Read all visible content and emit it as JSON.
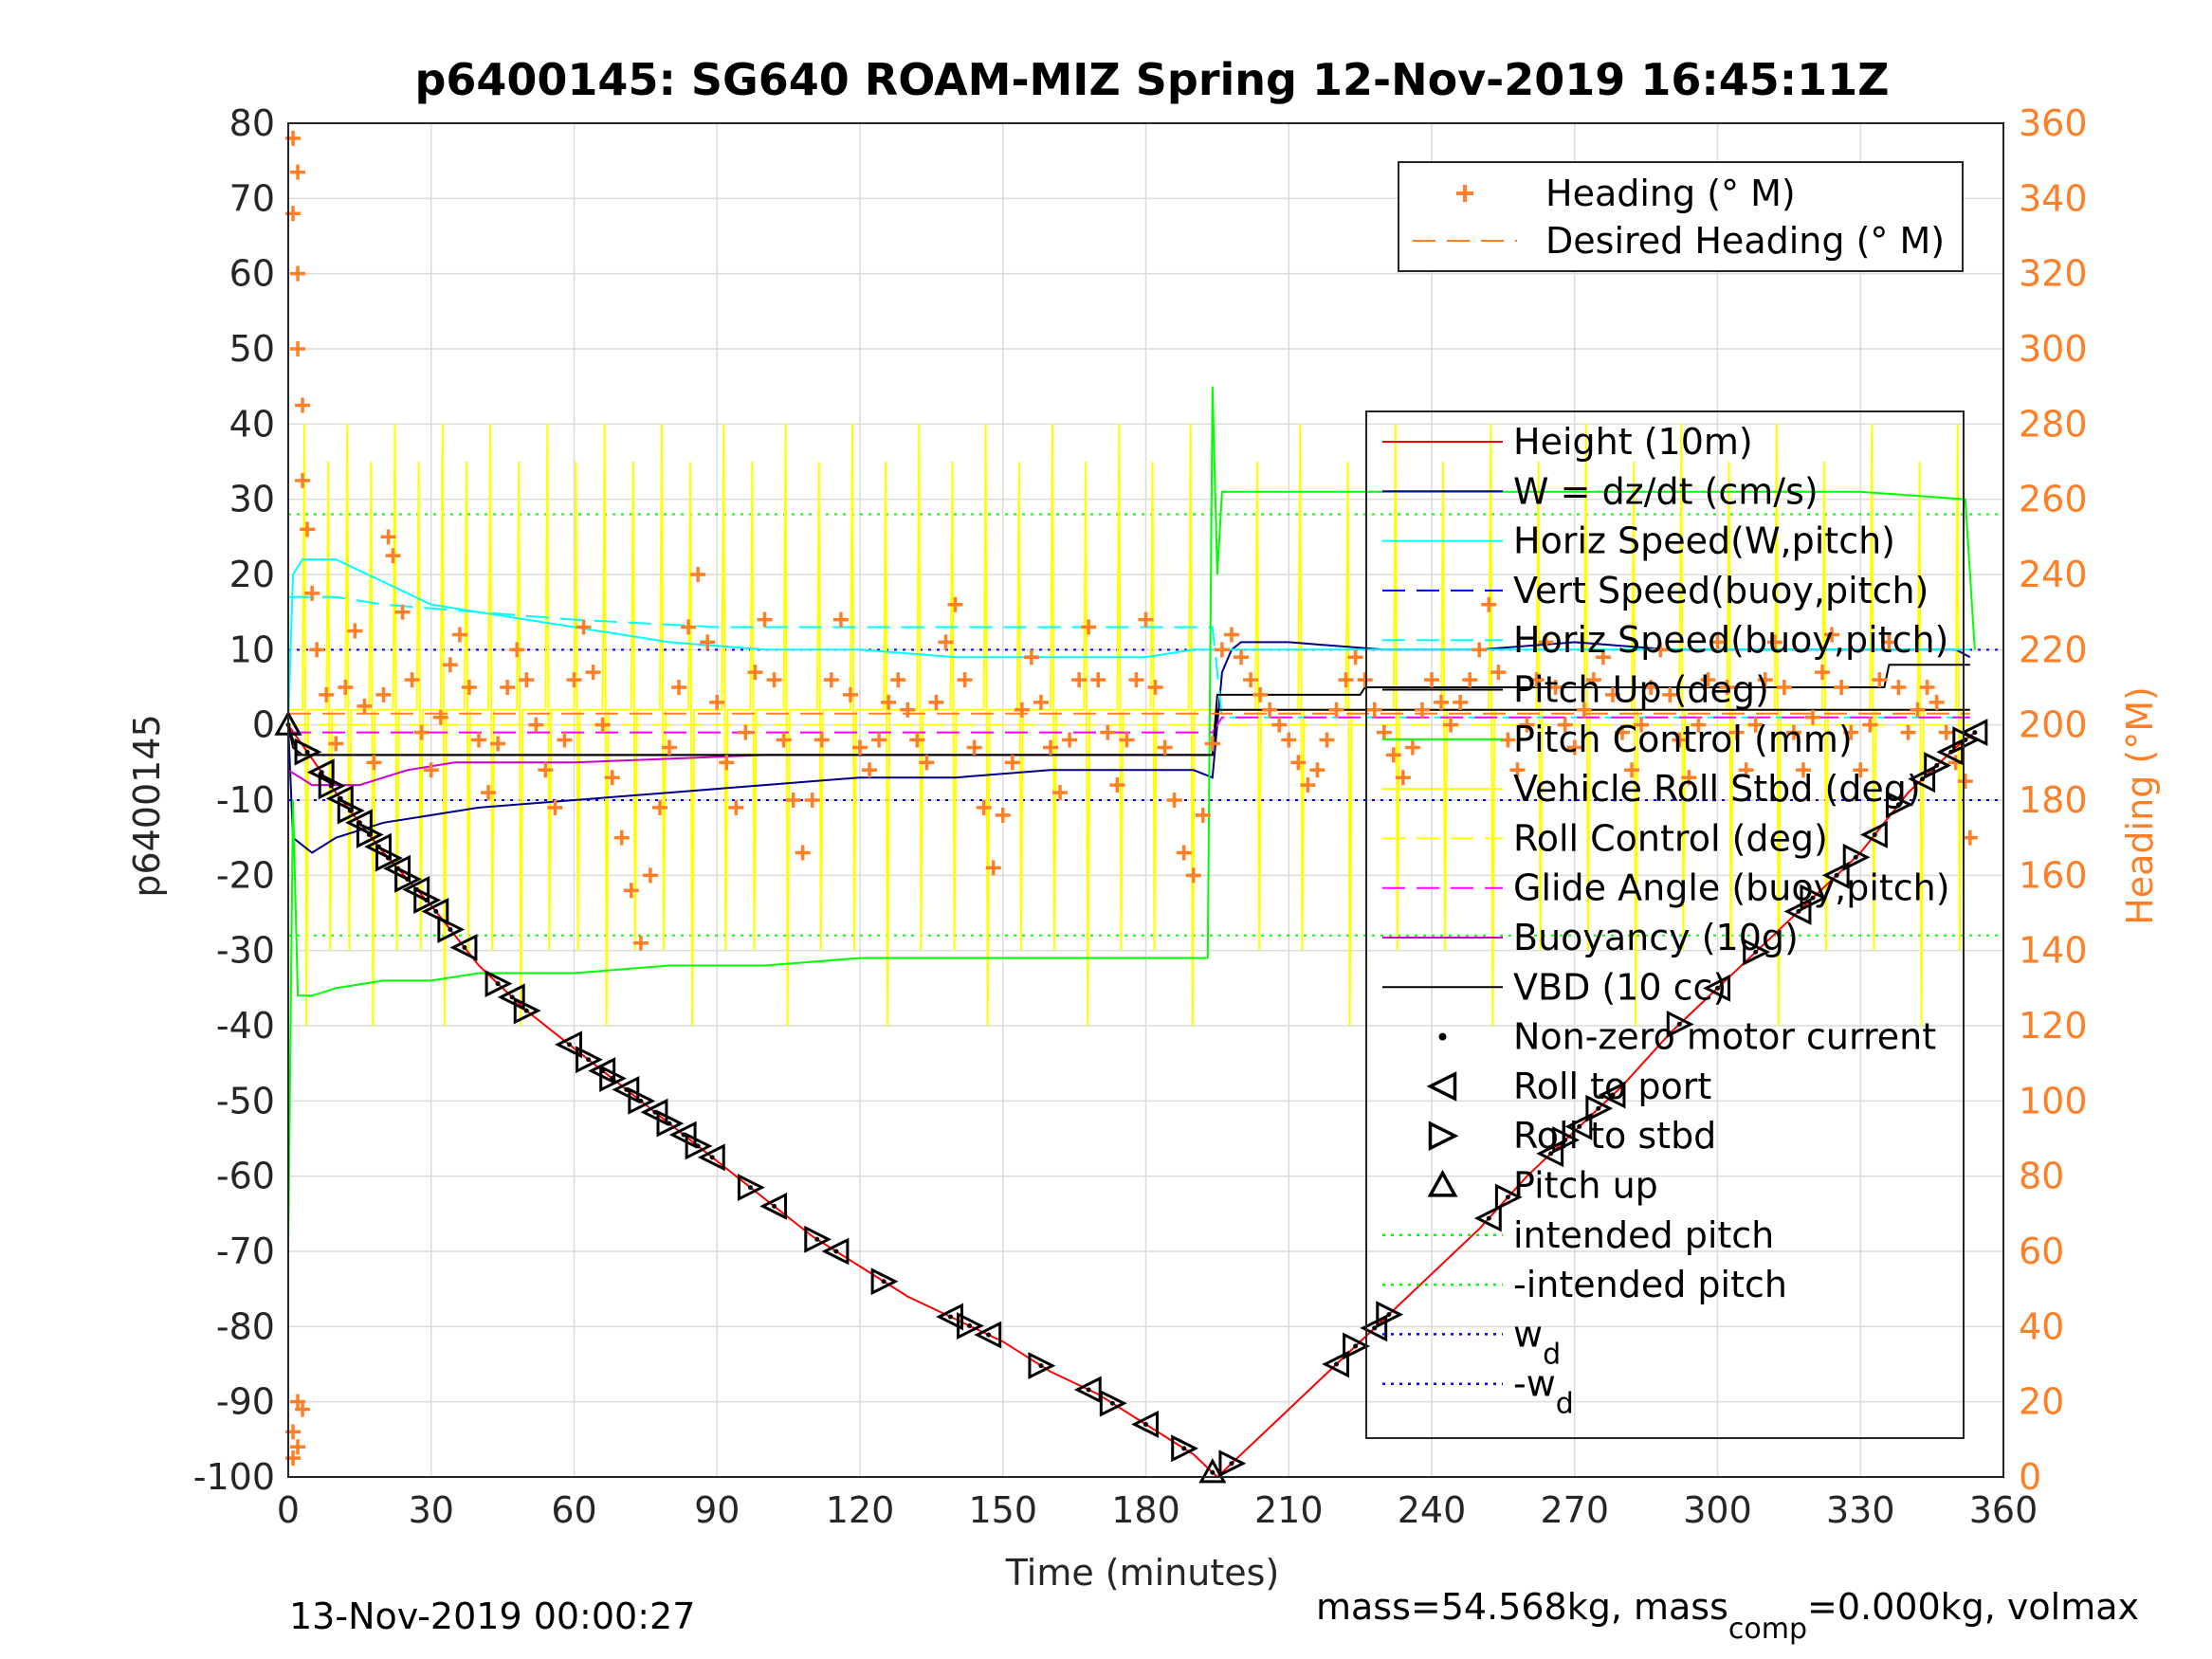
{
  "figure": {
    "footer_left": "13-Nov-2019 00:00:27",
    "footer_right": {
      "prefix": "mass=54.568kg, mass",
      "sub": "comp",
      "suffix": "=0.000kg, volmax"
    }
  },
  "chart_data": {
    "type": "line",
    "title": "p6400145: SG640 ROAM-MIZ Spring 12-Nov-2019 16:45:11Z",
    "xlabel": "Time (minutes)",
    "ylabel_left": "p6400145",
    "ylabel_right": "Heading (°M)",
    "xlim": [
      0,
      360
    ],
    "ylim_left": [
      -100,
      80
    ],
    "ylim_right": [
      0,
      360
    ],
    "x_ticks": [
      0,
      30,
      60,
      90,
      120,
      150,
      180,
      210,
      240,
      270,
      300,
      330,
      360
    ],
    "y_ticks_left": [
      80,
      70,
      60,
      50,
      40,
      30,
      20,
      10,
      0,
      -10,
      -20,
      -30,
      -40,
      -50,
      -60,
      -70,
      -80,
      -90,
      -100
    ],
    "y_ticks_right": [
      360,
      340,
      320,
      300,
      280,
      260,
      240,
      220,
      200,
      180,
      160,
      140,
      120,
      100,
      80,
      60,
      40,
      20,
      0
    ],
    "grid": true,
    "colors": {
      "heading": "#ff7f27",
      "height": "#ff0000",
      "w": "#00008b",
      "horiz_speed": "#00ffff",
      "vert_speed": "#0000ff",
      "pitch_up": "#000000",
      "pitch_control": "#00ff00",
      "roll": "#ffff00",
      "glide": "#ff00ff",
      "buoyancy": "#cc00cc",
      "vbd": "#000000",
      "guide_green": "#00ff00",
      "guide_blue": "#0000ff"
    },
    "legend_heading": [
      {
        "label": "Heading (° M)",
        "style": "plus",
        "color": "#ff7f27"
      },
      {
        "label": "Desired Heading (° M)",
        "style": "dash",
        "color": "#ff7f27"
      }
    ],
    "legend_main": [
      {
        "label": "Height (10m)",
        "style": "line",
        "color": "#ff0000"
      },
      {
        "label": "W = dz/dt (cm/s)",
        "style": "line",
        "color": "#00008b"
      },
      {
        "label": "Horiz Speed(W,pitch)",
        "style": "line",
        "color": "#00ffff"
      },
      {
        "label": "Vert Speed(buoy,pitch)",
        "style": "dash",
        "color": "#0000ff"
      },
      {
        "label": "Horiz Speed(buoy,pitch)",
        "style": "dash",
        "color": "#00ffff"
      },
      {
        "label": "Pitch Up (deg)",
        "style": "line",
        "color": "#000000"
      },
      {
        "label": "Pitch Control (mm)",
        "style": "line",
        "color": "#00ff00"
      },
      {
        "label": "Vehicle Roll Stbd (deg)",
        "style": "line",
        "color": "#ffff00"
      },
      {
        "label": "Roll Control (deg)",
        "style": "dash",
        "color": "#ffff00"
      },
      {
        "label": "Glide Angle (buoy,pitch)",
        "style": "dash",
        "color": "#ff00ff"
      },
      {
        "label": "Buoyancy (10g)",
        "style": "line",
        "color": "#cc00cc"
      },
      {
        "label": "VBD (10 cc)",
        "style": "line",
        "color": "#000000"
      },
      {
        "label": "Non-zero motor current",
        "style": "dot",
        "color": "#000000"
      },
      {
        "label": "Roll to port",
        "style": "tri-left",
        "color": "#000000"
      },
      {
        "label": "Roll to stbd",
        "style": "tri-right",
        "color": "#000000"
      },
      {
        "label": "Pitch up",
        "style": "tri-up",
        "color": "#000000"
      },
      {
        "label": "intended pitch",
        "style": "dotted",
        "color": "#00ff00"
      },
      {
        "label": "-intended pitch",
        "style": "dotted",
        "color": "#00ff00"
      },
      {
        "label": "w",
        "sub": "d",
        "style": "dotted",
        "color": "#0000ff"
      },
      {
        "label": "-w",
        "sub": "d",
        "style": "dotted",
        "color": "#0000ff"
      }
    ],
    "series": [
      {
        "key": "height",
        "axis": "left",
        "x": [
          0,
          10,
          20,
          30,
          40,
          50,
          60,
          70,
          80,
          90,
          100,
          110,
          120,
          130,
          140,
          150,
          160,
          170,
          180,
          190,
          195,
          200,
          210,
          220,
          230,
          240,
          250,
          260,
          270,
          280,
          290,
          300,
          310,
          320,
          330,
          340,
          350,
          354
        ],
        "y": [
          0,
          -9,
          -17,
          -24,
          -32,
          -38,
          -43,
          -48,
          -53,
          -58,
          -63,
          -68,
          -72,
          -76,
          -79,
          -82,
          -86,
          -89,
          -93,
          -97,
          -100,
          -97,
          -91,
          -85,
          -79,
          -73,
          -67,
          -60,
          -54,
          -48,
          -41,
          -35,
          -29,
          -23,
          -17,
          -9,
          -3,
          -1
        ]
      },
      {
        "key": "w",
        "axis": "left",
        "x": [
          0,
          1,
          5,
          10,
          20,
          30,
          40,
          60,
          80,
          100,
          120,
          140,
          160,
          180,
          190,
          194,
          196,
          198,
          200,
          210,
          230,
          250,
          270,
          290,
          310,
          330,
          350,
          353
        ],
        "y": [
          0,
          -15,
          -17,
          -15,
          -13,
          -12,
          -11,
          -10,
          -9,
          -8,
          -7,
          -7,
          -6,
          -6,
          -6,
          -7,
          7,
          10,
          11,
          11,
          10,
          10,
          11,
          10,
          10,
          10,
          10,
          9
        ]
      },
      {
        "key": "horiz_speed",
        "axis": "left",
        "x": [
          0,
          1,
          3,
          10,
          20,
          30,
          40,
          50,
          60,
          80,
          100,
          120,
          140,
          160,
          180,
          190,
          194,
          196,
          210,
          240,
          270,
          300,
          330,
          353
        ],
        "y": [
          0,
          20,
          22,
          22,
          19,
          16,
          15,
          14,
          13,
          11,
          10,
          10,
          9,
          9,
          9,
          10,
          10,
          10,
          10,
          10,
          10,
          10,
          10,
          10
        ]
      },
      {
        "key": "horiz_speed_buoy",
        "axis": "left",
        "x": [
          0,
          10,
          20,
          40,
          60,
          90,
          120,
          150,
          180,
          194,
          196,
          230,
          260,
          290,
          320,
          353
        ],
        "y": [
          17,
          17,
          16,
          15,
          14,
          13,
          13,
          13,
          13,
          13,
          1,
          1,
          1,
          1,
          1,
          1
        ]
      },
      {
        "key": "pitch_up",
        "axis": "left",
        "x": [
          0,
          1,
          3,
          194,
          195,
          225,
          226,
          335,
          336,
          353
        ],
        "y": [
          0,
          -3,
          -4,
          -4,
          4,
          4,
          5,
          5,
          8,
          8
        ]
      },
      {
        "key": "pitch_control_dive",
        "axis": "left",
        "x": [
          0,
          1,
          2,
          5,
          10,
          20,
          30,
          40,
          60,
          80,
          100,
          120,
          140,
          160,
          180,
          193
        ],
        "y": [
          -70,
          -10,
          -36,
          -36,
          -35,
          -34,
          -34,
          -33,
          -33,
          -32,
          -32,
          -31,
          -31,
          -31,
          -31,
          -31
        ]
      },
      {
        "key": "pitch_control_climb",
        "axis": "left",
        "x": [
          193,
          194,
          195,
          196,
          210,
          240,
          270,
          300,
          330,
          352,
          353,
          354
        ],
        "y": [
          -31,
          45,
          20,
          31,
          31,
          31,
          31,
          31,
          31,
          30,
          20,
          10
        ]
      },
      {
        "key": "glide_angle",
        "axis": "left",
        "x": [
          0,
          10,
          40,
          80,
          120,
          160,
          194,
          196,
          230,
          270,
          310,
          353
        ],
        "y": [
          -1,
          -1,
          -1,
          -1,
          -1,
          -1,
          -1,
          1,
          1,
          1,
          1,
          1
        ]
      },
      {
        "key": "buoyancy",
        "axis": "left",
        "x": [
          0,
          5,
          15,
          25,
          35,
          60,
          100,
          140,
          190
        ],
        "y": [
          -6,
          -8,
          -8,
          -6,
          -5,
          -5,
          -4,
          -4,
          -4
        ]
      },
      {
        "key": "vbd",
        "axis": "left",
        "x": [
          0,
          2,
          194,
          195,
          353
        ],
        "y": [
          0,
          -4,
          -4,
          2,
          2
        ]
      },
      {
        "key": "heading_desired",
        "axis": "right",
        "x": [
          0,
          353
        ],
        "y": [
          203,
          203
        ]
      }
    ],
    "heading_points": [
      [
        1,
        356
      ],
      [
        1,
        336
      ],
      [
        2,
        347
      ],
      [
        2,
        320
      ],
      [
        2,
        300
      ],
      [
        3,
        285
      ],
      [
        3,
        265
      ],
      [
        4,
        252
      ],
      [
        5,
        235
      ],
      [
        6,
        220
      ],
      [
        8,
        208
      ],
      [
        10,
        195
      ],
      [
        12,
        210
      ],
      [
        14,
        225
      ],
      [
        16,
        205
      ],
      [
        18,
        190
      ],
      [
        20,
        208
      ],
      [
        21,
        250
      ],
      [
        22,
        245
      ],
      [
        24,
        230
      ],
      [
        26,
        212
      ],
      [
        28,
        198
      ],
      [
        30,
        188
      ],
      [
        32,
        202
      ],
      [
        34,
        216
      ],
      [
        36,
        224
      ],
      [
        38,
        210
      ],
      [
        40,
        196
      ],
      [
        42,
        182
      ],
      [
        44,
        195
      ],
      [
        46,
        210
      ],
      [
        48,
        220
      ],
      [
        50,
        212
      ],
      [
        52,
        200
      ],
      [
        54,
        188
      ],
      [
        56,
        178
      ],
      [
        58,
        196
      ],
      [
        60,
        212
      ],
      [
        62,
        226
      ],
      [
        64,
        214
      ],
      [
        66,
        200
      ],
      [
        68,
        186
      ],
      [
        70,
        170
      ],
      [
        72,
        156
      ],
      [
        74,
        142
      ],
      [
        76,
        160
      ],
      [
        78,
        178
      ],
      [
        80,
        194
      ],
      [
        82,
        210
      ],
      [
        84,
        226
      ],
      [
        86,
        240
      ],
      [
        88,
        222
      ],
      [
        90,
        206
      ],
      [
        92,
        190
      ],
      [
        94,
        178
      ],
      [
        96,
        198
      ],
      [
        98,
        214
      ],
      [
        100,
        228
      ],
      [
        102,
        212
      ],
      [
        104,
        196
      ],
      [
        106,
        180
      ],
      [
        108,
        166
      ],
      [
        110,
        180
      ],
      [
        112,
        196
      ],
      [
        114,
        212
      ],
      [
        116,
        228
      ],
      [
        118,
        208
      ],
      [
        120,
        194
      ],
      [
        122,
        188
      ],
      [
        124,
        196
      ],
      [
        126,
        206
      ],
      [
        128,
        212
      ],
      [
        130,
        204
      ],
      [
        132,
        196
      ],
      [
        134,
        190
      ],
      [
        136,
        206
      ],
      [
        138,
        222
      ],
      [
        140,
        232
      ],
      [
        142,
        212
      ],
      [
        144,
        194
      ],
      [
        146,
        178
      ],
      [
        148,
        162
      ],
      [
        150,
        176
      ],
      [
        152,
        190
      ],
      [
        154,
        204
      ],
      [
        156,
        218
      ],
      [
        158,
        206
      ],
      [
        160,
        194
      ],
      [
        162,
        182
      ],
      [
        164,
        196
      ],
      [
        166,
        212
      ],
      [
        168,
        226
      ],
      [
        170,
        212
      ],
      [
        172,
        198
      ],
      [
        174,
        184
      ],
      [
        176,
        196
      ],
      [
        178,
        212
      ],
      [
        180,
        228
      ],
      [
        182,
        210
      ],
      [
        184,
        194
      ],
      [
        186,
        180
      ],
      [
        188,
        166
      ],
      [
        190,
        160
      ],
      [
        192,
        176
      ],
      [
        194,
        195
      ],
      [
        196,
        220
      ],
      [
        198,
        224
      ],
      [
        200,
        218
      ],
      [
        202,
        212
      ],
      [
        204,
        208
      ],
      [
        206,
        204
      ],
      [
        208,
        200
      ],
      [
        210,
        196
      ],
      [
        212,
        190
      ],
      [
        214,
        184
      ],
      [
        216,
        188
      ],
      [
        218,
        196
      ],
      [
        220,
        204
      ],
      [
        222,
        212
      ],
      [
        224,
        218
      ],
      [
        226,
        212
      ],
      [
        228,
        204
      ],
      [
        230,
        198
      ],
      [
        232,
        192
      ],
      [
        234,
        186
      ],
      [
        236,
        194
      ],
      [
        238,
        204
      ],
      [
        240,
        212
      ],
      [
        242,
        206
      ],
      [
        244,
        200
      ],
      [
        246,
        206
      ],
      [
        248,
        212
      ],
      [
        250,
        220
      ],
      [
        252,
        232
      ],
      [
        254,
        214
      ],
      [
        256,
        196
      ],
      [
        258,
        188
      ],
      [
        260,
        200
      ],
      [
        262,
        212
      ],
      [
        264,
        222
      ],
      [
        266,
        210
      ],
      [
        268,
        200
      ],
      [
        270,
        194
      ],
      [
        272,
        204
      ],
      [
        274,
        212
      ],
      [
        276,
        218
      ],
      [
        278,
        208
      ],
      [
        280,
        198
      ],
      [
        282,
        188
      ],
      [
        284,
        200
      ],
      [
        286,
        210
      ],
      [
        288,
        220
      ],
      [
        290,
        208
      ],
      [
        292,
        196
      ],
      [
        294,
        186
      ],
      [
        296,
        200
      ],
      [
        298,
        212
      ],
      [
        300,
        222
      ],
      [
        302,
        210
      ],
      [
        304,
        198
      ],
      [
        306,
        188
      ],
      [
        308,
        200
      ],
      [
        310,
        212
      ],
      [
        312,
        222
      ],
      [
        314,
        210
      ],
      [
        316,
        198
      ],
      [
        318,
        188
      ],
      [
        320,
        202
      ],
      [
        322,
        214
      ],
      [
        324,
        224
      ],
      [
        326,
        210
      ],
      [
        328,
        198
      ],
      [
        330,
        188
      ],
      [
        332,
        200
      ],
      [
        334,
        212
      ],
      [
        336,
        222
      ],
      [
        338,
        210
      ],
      [
        340,
        198
      ],
      [
        342,
        204
      ],
      [
        344,
        210
      ],
      [
        346,
        206
      ],
      [
        348,
        198
      ],
      [
        350,
        190
      ],
      [
        352,
        185
      ],
      [
        353,
        170
      ],
      [
        1,
        5
      ],
      [
        1,
        12
      ],
      [
        2,
        20
      ],
      [
        2,
        8
      ],
      [
        3,
        18
      ]
    ],
    "roll_spike_times": [
      3,
      8,
      12,
      17,
      22,
      27,
      32,
      37,
      42,
      48,
      54,
      60,
      66,
      72,
      78,
      84,
      91,
      97,
      104,
      111,
      118,
      125,
      132,
      139,
      146,
      153,
      160,
      167,
      174,
      181,
      189,
      203,
      212,
      222,
      232,
      242,
      252,
      262,
      272,
      282,
      292,
      302,
      312,
      322,
      332,
      342,
      350
    ],
    "marker_times": [
      0,
      4,
      7,
      9,
      11,
      13,
      15,
      17,
      19,
      21,
      23,
      25,
      27,
      29,
      31,
      34,
      37,
      44,
      47,
      50,
      59,
      63,
      66,
      68,
      71,
      74,
      77,
      80,
      83,
      86,
      89,
      97,
      102,
      111,
      115,
      125,
      139,
      143,
      147,
      158,
      168,
      173,
      180,
      188,
      194,
      198,
      220,
      224,
      228,
      231,
      252,
      256,
      265,
      268,
      271,
      275,
      278,
      292,
      300,
      308,
      317,
      320,
      325,
      329,
      333,
      338,
      343,
      346,
      349,
      352,
      354
    ],
    "intended_pitch": 28,
    "wd": 10
  }
}
